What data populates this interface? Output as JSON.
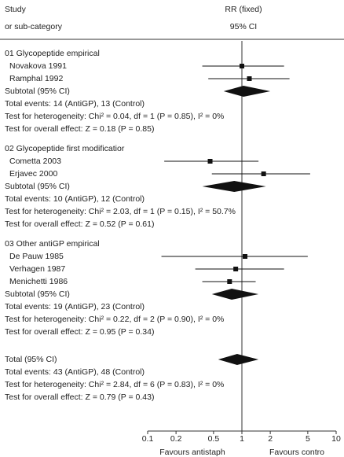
{
  "chart_data": {
    "type": "forest",
    "header": {
      "col1_line1": "Study",
      "col1_line2": "or sub-category",
      "col2_line1": "RR (fixed)",
      "col2_line2": "95% CI"
    },
    "log_scale": true,
    "xlim": [
      0.1,
      10
    ],
    "xticks": [
      0.1,
      0.2,
      0.5,
      1,
      2,
      5,
      10
    ],
    "favours_left": "Favours antistaph",
    "favours_right": "Favours contro",
    "groups": [
      {
        "title": "01 Glycopeptide empirical",
        "studies": [
          {
            "name": "Novakova 1991",
            "rr": 1.0,
            "ci_low": 0.38,
            "ci_high": 2.8
          },
          {
            "name": "Ramphal 1992",
            "rr": 1.2,
            "ci_low": 0.44,
            "ci_high": 3.2
          }
        ],
        "subtotal": {
          "label": "Subtotal (95% CI)",
          "rr": 1.04,
          "ci_low": 0.64,
          "ci_high": 2.0
        },
        "events": "Total events: 14 (AntiGP), 13 (Control)",
        "heterogeneity": "Test for heterogeneity: Chi² = 0.04, df = 1 (P = 0.85), I² = 0%",
        "overall": "Test for overall effect: Z = 0.18 (P = 0.85)"
      },
      {
        "title": "02 Glycopeptide first modificatior",
        "studies": [
          {
            "name": "Cometta 2003",
            "rr": 0.46,
            "ci_low": 0.15,
            "ci_high": 1.5
          },
          {
            "name": "Erjavec 2000",
            "rr": 1.7,
            "ci_low": 0.48,
            "ci_high": 5.3
          }
        ],
        "subtotal": {
          "label": "Subtotal (95% CI)",
          "rr": 0.83,
          "ci_low": 0.38,
          "ci_high": 1.8
        },
        "events": "Total events: 10 (AntiGP), 12 (Control)",
        "heterogeneity": "Test for heterogeneity: Chi² = 2.03, df = 1 (P = 0.15), I² = 50.7%",
        "overall": "Test for overall effect: Z = 0.52 (P = 0.61)"
      },
      {
        "title": "03 Other antiGP empirical",
        "studies": [
          {
            "name": "De Pauw 1985",
            "rr": 1.08,
            "ci_low": 0.14,
            "ci_high": 5.0
          },
          {
            "name": "Verhagen 1987",
            "rr": 0.86,
            "ci_low": 0.32,
            "ci_high": 2.8
          },
          {
            "name": "Menichetti 1986",
            "rr": 0.74,
            "ci_low": 0.38,
            "ci_high": 1.4
          }
        ],
        "subtotal": {
          "label": "Subtotal (95% CI)",
          "rr": 0.78,
          "ci_low": 0.48,
          "ci_high": 1.5
        },
        "events": "Total events: 19 (AntiGP), 23 (Control)",
        "heterogeneity": "Test for heterogeneity: Chi² = 0.22, df = 2 (P = 0.90), I² = 0%",
        "overall": "Test for overall effect: Z = 0.95 (P = 0.34)"
      }
    ],
    "total": {
      "label": "Total (95% CI)",
      "rr": 0.89,
      "ci_low": 0.56,
      "ci_high": 1.5,
      "events": "Total events: 43 (AntiGP), 48 (Control)",
      "heterogeneity": "Test for heterogeneity: Chi² = 2.84, df = 6 (P = 0.83), I² = 0%",
      "overall": "Test for overall effect: Z = 0.79 (P = 0.43)"
    }
  }
}
